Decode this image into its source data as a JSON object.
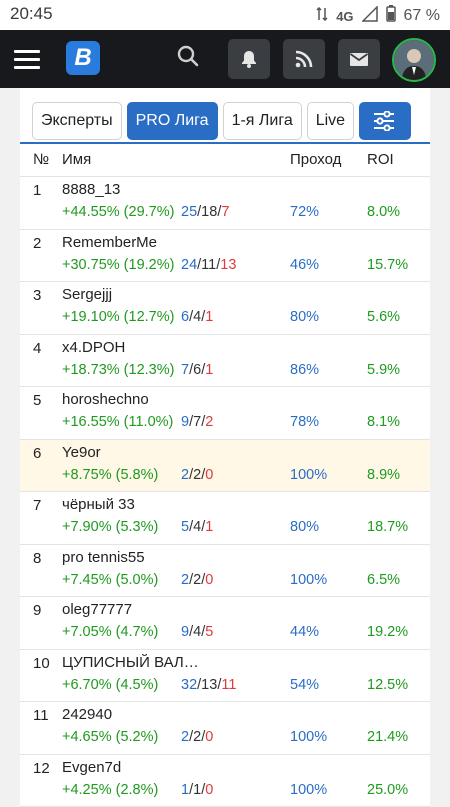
{
  "status_bar": {
    "time": "20:45",
    "network": "4G",
    "battery": "67 %"
  },
  "header": {
    "logo_letter": "B",
    "icons": [
      "menu-icon",
      "search-icon",
      "bell-icon",
      "rss-icon",
      "mail-icon",
      "avatar"
    ]
  },
  "tabs": [
    {
      "label": "Эксперты",
      "active": false
    },
    {
      "label": "PRO Лига",
      "active": true
    },
    {
      "label": "1-я Лига",
      "active": false
    },
    {
      "label": "Live",
      "active": false
    }
  ],
  "table": {
    "headers": {
      "num": "№",
      "name": "Имя",
      "pass": "Проход",
      "roi": "ROI"
    },
    "rows": [
      {
        "num": "1",
        "name": "8888_13",
        "profit": "+44.55% (29.7%)",
        "w": "25",
        "d": "18",
        "l": "7",
        "pass": "72%",
        "roi": "8.0%"
      },
      {
        "num": "2",
        "name": "RememberMe",
        "profit": "+30.75% (19.2%)",
        "w": "24",
        "d": "11",
        "l": "13",
        "pass": "46%",
        "roi": "15.7%"
      },
      {
        "num": "3",
        "name": "Sergejjj",
        "profit": "+19.10% (12.7%)",
        "w": "6",
        "d": "4",
        "l": "1",
        "pass": "80%",
        "roi": "5.6%"
      },
      {
        "num": "4",
        "name": "x4.DPOH",
        "profit": "+18.73% (12.3%)",
        "w": "7",
        "d": "6",
        "l": "1",
        "pass": "86%",
        "roi": "5.9%"
      },
      {
        "num": "5",
        "name": "horoshechno",
        "profit": "+16.55% (11.0%)",
        "w": "9",
        "d": "7",
        "l": "2",
        "pass": "78%",
        "roi": "8.1%"
      },
      {
        "num": "6",
        "name": "Ye9or",
        "profit": "+8.75% (5.8%)",
        "w": "2",
        "d": "2",
        "l": "0",
        "pass": "100%",
        "roi": "8.9%",
        "highlight": true
      },
      {
        "num": "7",
        "name": "чёрный 33",
        "profit": "+7.90% (5.3%)",
        "w": "5",
        "d": "4",
        "l": "1",
        "pass": "80%",
        "roi": "18.7%"
      },
      {
        "num": "8",
        "name": "pro tennis55",
        "profit": "+7.45% (5.0%)",
        "w": "2",
        "d": "2",
        "l": "0",
        "pass": "100%",
        "roi": "6.5%"
      },
      {
        "num": "9",
        "name": "oleg77777",
        "profit": "+7.05% (4.7%)",
        "w": "9",
        "d": "4",
        "l": "5",
        "pass": "44%",
        "roi": "19.2%"
      },
      {
        "num": "10",
        "name": "ЦУПИСНЫЙ ВАЛ…",
        "profit": "+6.70% (4.5%)",
        "w": "32",
        "d": "13",
        "l": "11",
        "pass": "54%",
        "roi": "12.5%"
      },
      {
        "num": "11",
        "name": "242940",
        "profit": "+4.65% (5.2%)",
        "w": "2",
        "d": "2",
        "l": "0",
        "pass": "100%",
        "roi": "21.4%"
      },
      {
        "num": "12",
        "name": "Evgen7d",
        "profit": "+4.25% (2.8%)",
        "w": "1",
        "d": "1",
        "l": "0",
        "pass": "100%",
        "roi": "25.0%"
      }
    ]
  },
  "colors": {
    "accent": "#2a6dc5",
    "positive": "#1f9a1f",
    "loss": "#e0393e",
    "header_bg": "#17191d",
    "highlight_row": "#fff8e6"
  }
}
